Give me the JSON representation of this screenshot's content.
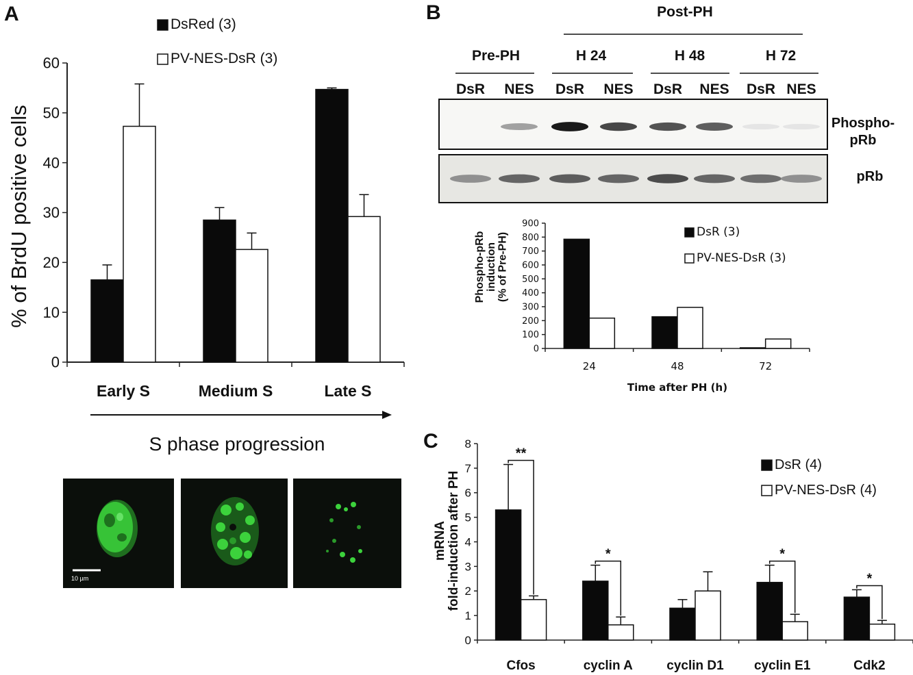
{
  "figure": {
    "panel_labels": {
      "a": "A",
      "b": "B",
      "c": "C"
    },
    "panel_a_axis_title": "S phase progression",
    "scale_bar_label": "10 µm"
  },
  "blot": {
    "group_title": "Post-PH",
    "timepoints": [
      "Pre-PH",
      "H 24",
      "H 48",
      "H 72"
    ],
    "lanes": [
      "DsR",
      "NES",
      "DsR",
      "NES",
      "DsR",
      "NES",
      "DsR",
      "NES"
    ],
    "rows": [
      "Phospho-\npRb",
      "pRb"
    ],
    "phospho_band_intensity": [
      0.0,
      0.35,
      0.95,
      0.75,
      0.7,
      0.65,
      0.05,
      0.05
    ],
    "prb_band_intensity": [
      0.45,
      0.7,
      0.75,
      0.7,
      0.85,
      0.7,
      0.65,
      0.45
    ]
  },
  "colors": {
    "dsr": "#0a0a0a",
    "nes": "#ffffff",
    "axis": "#222222",
    "cell_green": "#3cd23c",
    "micrograph_bg": "#0b0f0b"
  },
  "chart_data": [
    {
      "id": "A",
      "type": "bar",
      "title": "",
      "xlabel": "",
      "ylabel": "% of BrdU positive cells",
      "categories": [
        "Early S",
        "Medium S",
        "Late S"
      ],
      "ylim": [
        0,
        60
      ],
      "yticks": [
        0,
        10,
        20,
        30,
        40,
        50,
        60
      ],
      "grid": false,
      "legend": "top",
      "series": [
        {
          "name": "DsRed (3)",
          "color": "#0a0a0a",
          "values": [
            16.5,
            28.5,
            54.7
          ],
          "errors": [
            3.0,
            2.5,
            0.3
          ]
        },
        {
          "name": "PV-NES-DsR (3)",
          "color": "#ffffff",
          "values": [
            47.3,
            22.6,
            29.2
          ],
          "errors": [
            8.5,
            3.3,
            4.4
          ]
        }
      ]
    },
    {
      "id": "B",
      "type": "bar",
      "title": "",
      "xlabel": "Time after PH (h)",
      "ylabel": "Phospho-pRb\ninduction\n(% of Pre-PH)",
      "categories": [
        "24",
        "48",
        "72"
      ],
      "ylim": [
        0,
        900
      ],
      "yticks": [
        0,
        100,
        200,
        300,
        400,
        500,
        600,
        700,
        800,
        900
      ],
      "grid": false,
      "legend": "top-right",
      "series": [
        {
          "name": "DsR (3)",
          "color": "#0a0a0a",
          "values": [
            785,
            228,
            5
          ]
        },
        {
          "name": "PV-NES-DsR (3)",
          "color": "#ffffff",
          "values": [
            218,
            295,
            68
          ]
        }
      ]
    },
    {
      "id": "C",
      "type": "bar",
      "title": "",
      "xlabel": "",
      "ylabel": "mRNA\nfold-induction after PH",
      "categories": [
        "Cfos",
        "cyclin A",
        "cyclin D1",
        "cyclin E1",
        "Cdk2"
      ],
      "ylim": [
        0,
        8
      ],
      "yticks": [
        0,
        1,
        2,
        3,
        4,
        5,
        6,
        7,
        8
      ],
      "grid": false,
      "legend": "top-right",
      "significance": [
        "**",
        "*",
        "",
        "*",
        "*"
      ],
      "series": [
        {
          "name": "DsR (4)",
          "color": "#0a0a0a",
          "values": [
            5.3,
            2.4,
            1.3,
            2.35,
            1.75
          ],
          "errors": [
            1.85,
            0.65,
            0.35,
            0.7,
            0.3
          ]
        },
        {
          "name": "PV-NES-DsR (4)",
          "color": "#ffffff",
          "values": [
            1.65,
            0.62,
            2.0,
            0.75,
            0.65
          ],
          "errors": [
            0.15,
            0.32,
            0.78,
            0.3,
            0.15
          ]
        }
      ]
    }
  ]
}
